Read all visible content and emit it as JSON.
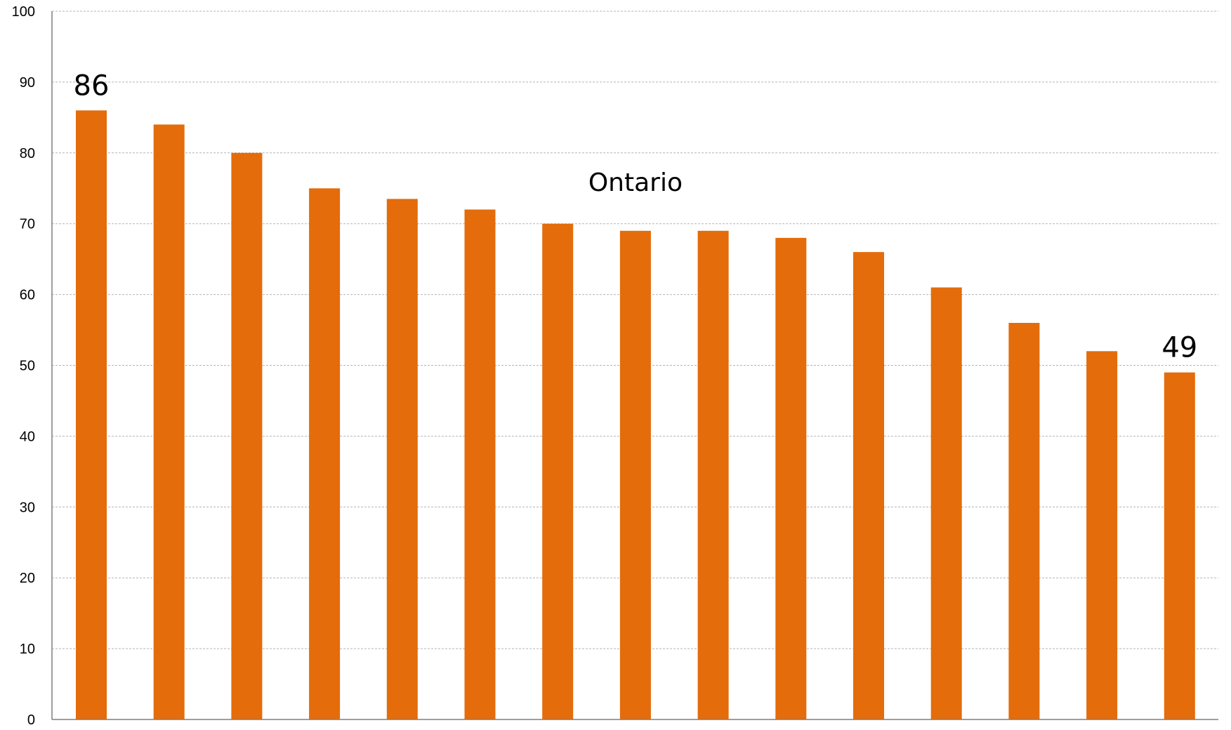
{
  "chart_data": {
    "type": "bar",
    "categories": [
      "",
      "",
      "",
      "",
      "",
      "",
      "",
      "",
      "",
      "",
      "",
      "",
      "",
      "",
      ""
    ],
    "values": [
      86,
      84,
      80,
      75,
      73.5,
      72,
      70,
      69,
      69,
      68,
      66,
      61,
      56,
      52,
      49
    ],
    "ylim": [
      0,
      100
    ],
    "y_ticks": [
      "0",
      "10",
      "20",
      "30",
      "40",
      "50",
      "60",
      "70",
      "80",
      "90",
      "100"
    ],
    "grid": true,
    "bar_color": "#E46C0A",
    "data_labels": [
      {
        "index": 0,
        "text": "86"
      },
      {
        "index": 14,
        "text": "49"
      }
    ],
    "annotation": {
      "text": "Ontario",
      "near_index": 7
    }
  }
}
